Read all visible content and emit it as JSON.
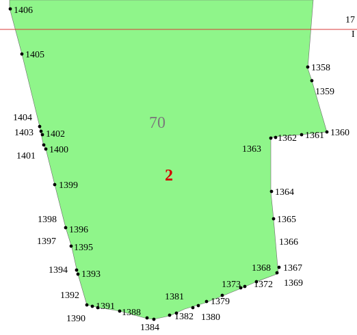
{
  "map": {
    "zone_number": "70",
    "parcel_number": "2",
    "edge_labels": {
      "top_right": "17",
      "line_right": "I"
    },
    "colors": {
      "parcel_fill": "#8ff58a",
      "boundary_line": "#d83a3a",
      "point": "#000000",
      "parcel_label": "#d40000",
      "zone_label": "#7a7a7a"
    },
    "points": [
      {
        "id": "p1406",
        "label": "1406"
      },
      {
        "id": "p1405",
        "label": "1405"
      },
      {
        "id": "p1404",
        "label": "1404"
      },
      {
        "id": "p1403",
        "label": "1403"
      },
      {
        "id": "p1402",
        "label": "1402"
      },
      {
        "id": "p1401",
        "label": "1401"
      },
      {
        "id": "p1400",
        "label": "1400"
      },
      {
        "id": "p1399",
        "label": "1399"
      },
      {
        "id": "p1398",
        "label": "1398"
      },
      {
        "id": "p1397",
        "label": "1397"
      },
      {
        "id": "p1396",
        "label": "1396"
      },
      {
        "id": "p1395",
        "label": "1395"
      },
      {
        "id": "p1394",
        "label": "1394"
      },
      {
        "id": "p1393",
        "label": "1393"
      },
      {
        "id": "p1392",
        "label": "1392"
      },
      {
        "id": "p1391",
        "label": "1391"
      },
      {
        "id": "p1390",
        "label": "1390"
      },
      {
        "id": "p1388",
        "label": "1388"
      },
      {
        "id": "p1384",
        "label": "1384"
      },
      {
        "id": "p1382",
        "label": "1382"
      },
      {
        "id": "p1381",
        "label": "1381"
      },
      {
        "id": "p1380",
        "label": "1380"
      },
      {
        "id": "p1379",
        "label": "1379"
      },
      {
        "id": "p1373",
        "label": "1373"
      },
      {
        "id": "p1372",
        "label": "1372"
      },
      {
        "id": "p1369",
        "label": "1369"
      },
      {
        "id": "p1368",
        "label": "1368"
      },
      {
        "id": "p1367",
        "label": "1367"
      },
      {
        "id": "p1366",
        "label": "1366"
      },
      {
        "id": "p1365",
        "label": "1365"
      },
      {
        "id": "p1364",
        "label": "1364"
      },
      {
        "id": "p1363",
        "label": "1363"
      },
      {
        "id": "p1362",
        "label": "1362"
      },
      {
        "id": "p1361",
        "label": "1361"
      },
      {
        "id": "p1360",
        "label": "1360"
      },
      {
        "id": "p1359",
        "label": "1359"
      },
      {
        "id": "p1358",
        "label": "1358"
      }
    ]
  }
}
